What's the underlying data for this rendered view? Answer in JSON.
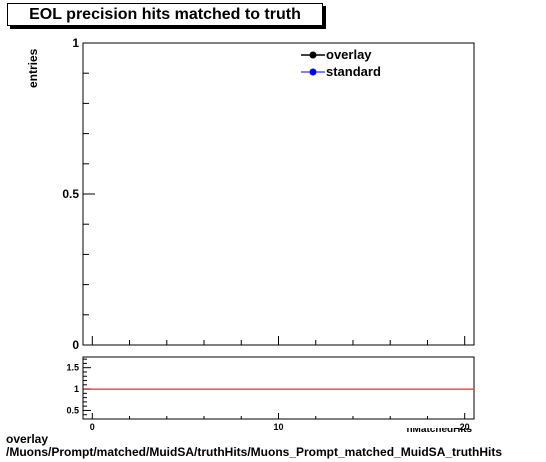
{
  "chart_data": [
    {
      "type": "line",
      "title": "EOL precision hits matched to truth",
      "ylabel": "entries",
      "xlim": [
        -0.5,
        20.5
      ],
      "ylim": [
        0,
        1
      ],
      "y_ticks": [
        {
          "value": 0,
          "label": "0"
        },
        {
          "value": 0.5,
          "label": "0.5"
        },
        {
          "value": 1,
          "label": "1"
        }
      ],
      "legend_position": "top-right",
      "series": [
        {
          "name": "overlay",
          "color": "#000000",
          "x": [],
          "y": []
        },
        {
          "name": "standard",
          "color": "#0000ff",
          "x": [],
          "y": []
        }
      ]
    },
    {
      "type": "line",
      "xlim": [
        -0.5,
        20.5
      ],
      "ylim": [
        0.3,
        1.75
      ],
      "x_ticks": [
        {
          "value": 0,
          "label": "0"
        },
        {
          "value": 10,
          "label": "10"
        },
        {
          "value": 20,
          "label": "20"
        }
      ],
      "y_ticks": [
        {
          "value": 0.5,
          "label": "0.5"
        },
        {
          "value": 1,
          "label": "1"
        },
        {
          "value": 1.5,
          "label": "1.5"
        }
      ],
      "xlabel_partial": "nMatchedHits",
      "reference_line": {
        "y": 1,
        "color": "#cc0000"
      }
    }
  ],
  "footer": {
    "line1": "overlay",
    "line2": "/Muons/Prompt/matched/MuidSA/truthHits/Muons_Prompt_matched_MuidSA_truthHits"
  }
}
